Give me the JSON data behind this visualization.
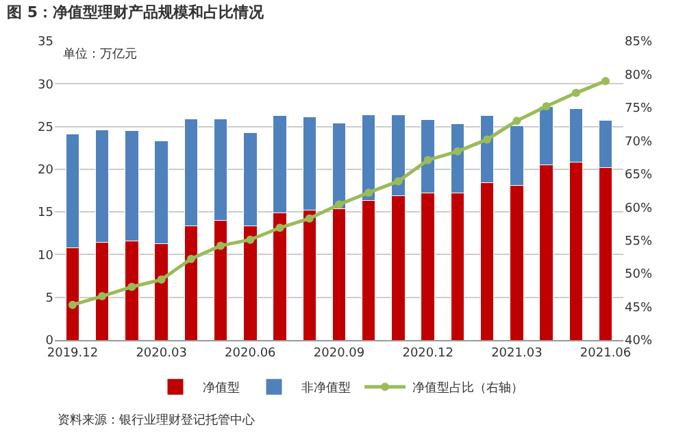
{
  "chart_data": {
    "type": "bar",
    "title": "图 5：净值型理财产品规模和占比情况",
    "categories": [
      "2019.12",
      null,
      null,
      "2020.03",
      null,
      null,
      "2020.06",
      null,
      null,
      "2020.09",
      null,
      null,
      "2020.12",
      null,
      null,
      "2021.03",
      null,
      null,
      "2021.06"
    ],
    "stacked": true,
    "series": [
      {
        "name": "净值型",
        "color": "#c00000",
        "values": [
          10.8,
          11.4,
          11.6,
          11.3,
          13.4,
          14.0,
          13.4,
          14.9,
          15.2,
          15.4,
          16.3,
          16.9,
          17.2,
          17.2,
          18.4,
          18.1,
          20.5,
          20.8,
          20.2
        ]
      },
      {
        "name": "非净值型",
        "color": "#4f81bd",
        "values": [
          13.3,
          13.2,
          12.9,
          12.0,
          12.5,
          11.9,
          10.9,
          11.4,
          10.9,
          10.0,
          10.1,
          9.5,
          8.6,
          8.1,
          7.9,
          7.0,
          6.8,
          6.3,
          5.5
        ]
      },
      {
        "name": "净值型占比（右轴）",
        "type": "line",
        "axis": "y2",
        "color": "#9bbb59",
        "marker": "circle",
        "values": [
          45.3,
          46.6,
          48.0,
          49.1,
          52.2,
          54.2,
          55.1,
          56.9,
          58.3,
          60.4,
          62.2,
          63.9,
          67.1,
          68.4,
          70.2,
          73.0,
          75.2,
          77.2,
          79.0
        ]
      }
    ],
    "ylim": [
      0,
      35
    ],
    "yticks": [
      0,
      5,
      10,
      15,
      20,
      25,
      30,
      35
    ],
    "y2lim": [
      40,
      85
    ],
    "y2ticks": [
      {
        "value": 40,
        "label": "40%"
      },
      {
        "value": 45,
        "label": "45%"
      },
      {
        "value": 50,
        "label": "50%"
      },
      {
        "value": 55,
        "label": "55%"
      },
      {
        "value": 60,
        "label": "60%"
      },
      {
        "value": 65,
        "label": "65%"
      },
      {
        "value": 70,
        "label": "70%"
      },
      {
        "value": 75,
        "label": "75%"
      },
      {
        "value": 80,
        "label": "80%"
      },
      {
        "value": 85,
        "label": "85%"
      }
    ],
    "grid": "y",
    "legend": "bottom",
    "annotations": [
      "单位：万亿元",
      "资料来源：银行业理财登记托管中心"
    ]
  }
}
